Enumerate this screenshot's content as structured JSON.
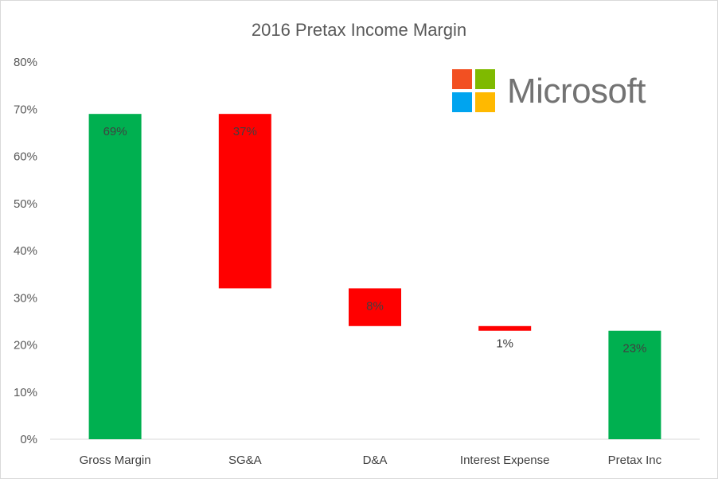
{
  "chart_data": {
    "type": "waterfall",
    "title": "2016 Pretax Income Margin",
    "categories": [
      "Gross Margin",
      "SG&A",
      "D&A",
      "Interest Expense",
      "Pretax Inc"
    ],
    "values": [
      69,
      -37,
      -8,
      -1,
      23
    ],
    "kind": [
      "total",
      "decrease",
      "decrease",
      "decrease",
      "total"
    ],
    "data_labels": [
      "69%",
      "37%",
      "8%",
      "1%",
      "23%"
    ],
    "ylim": [
      0,
      80
    ],
    "yticks": [
      "0%",
      "10%",
      "20%",
      "30%",
      "40%",
      "50%",
      "60%",
      "70%",
      "80%"
    ],
    "grid": false,
    "colors": {
      "total": "#00b050",
      "decrease": "#ff0000"
    }
  },
  "logo": {
    "text": "Microsoft",
    "colors": [
      "#f25022",
      "#7fba00",
      "#00a4ef",
      "#ffb900"
    ]
  }
}
